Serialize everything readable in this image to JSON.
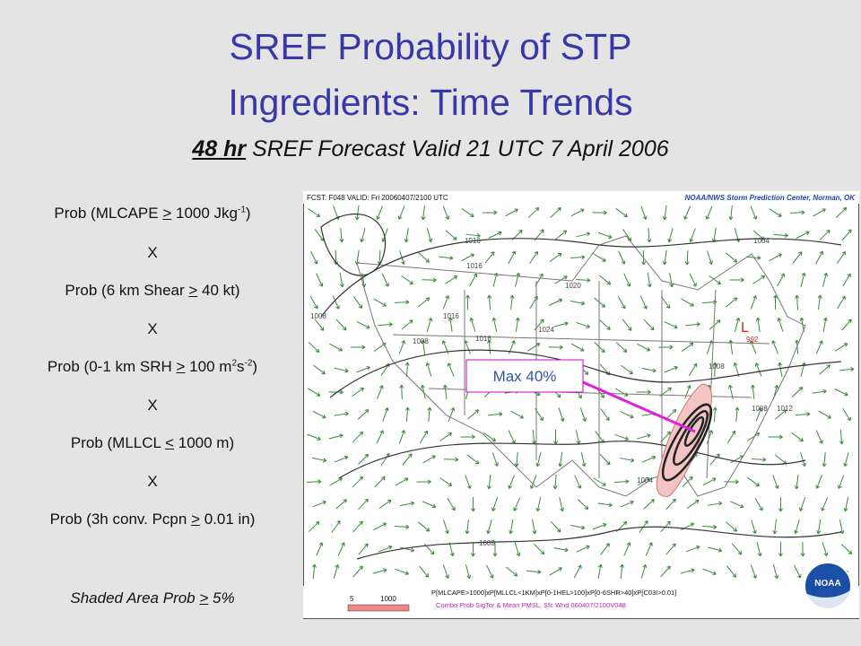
{
  "header": {
    "title_lines": [
      "SREF Probability of STP",
      "Ingredients: Time Trends"
    ],
    "subtitle": {
      "emphasis": "48 hr",
      "rest": " SREF Forecast Valid 21 UTC 7 April 2006"
    }
  },
  "ingredients": [
    {
      "parts": [
        "Prob (MLCAPE ",
        ">",
        " 1000 Jkg",
        "-1",
        ")"
      ]
    },
    {
      "parts": [
        "X"
      ]
    },
    {
      "parts": [
        "Prob (6 km Shear ",
        ">",
        " 40 kt)"
      ]
    },
    {
      "parts": [
        "X"
      ]
    },
    {
      "parts": [
        "Prob (0-1 km SRH ",
        ">",
        " 100 m",
        "2",
        "s",
        "-2",
        ")"
      ]
    },
    {
      "parts": [
        "X"
      ]
    },
    {
      "parts": [
        "Prob (MLLCL ",
        "<",
        " 1000 m)"
      ]
    },
    {
      "parts": [
        "X"
      ]
    },
    {
      "parts": [
        "Prob (3h conv. Pcpn ",
        ">",
        " 0.01 in)"
      ]
    }
  ],
  "note": {
    "parts": [
      "Shaded Area Prob ",
      ">",
      " 5%"
    ]
  },
  "map": {
    "forecast_label": "FCST: F048  VALID: Fri  20060407/2100 UTC",
    "source": "NOAA/NWS Storm Prediction Center, Norman, OK",
    "formula": "P[MLCAPE>1000]xP[MLLCL<1KM]xP[0-1HEL>100]xP[0-6SHR>40]xP[C03I>0.01]",
    "caption": "Combo Prob SigTor & Mean PMSL, Sfc Wnd 060407/2100V048",
    "legend": [
      "5",
      "1000"
    ],
    "logo": "NOAA",
    "callout": "Max 40%",
    "low": "L",
    "isobars": [
      "1016",
      "1016",
      "1020",
      "1024",
      "1008",
      "1016",
      "1016",
      "1008",
      "1004",
      "1008",
      "1012",
      "1008",
      "1004",
      "1008",
      "992"
    ]
  }
}
